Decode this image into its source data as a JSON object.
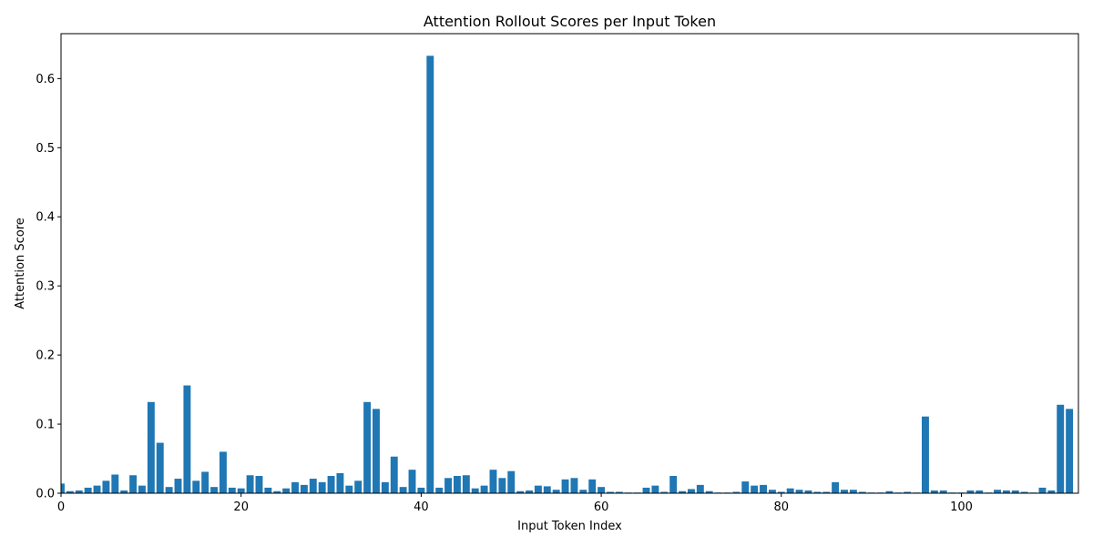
{
  "chart_data": {
    "type": "bar",
    "title": "Attention Rollout Scores per Input Token",
    "xlabel": "Input Token Index",
    "ylabel": "Attention Score",
    "xlim": [
      0,
      113
    ],
    "ylim": [
      0,
      0.665
    ],
    "xticks": [
      0,
      20,
      40,
      60,
      80,
      100
    ],
    "xtick_labels": [
      "0",
      "20",
      "40",
      "60",
      "80",
      "100"
    ],
    "yticks": [
      0.0,
      0.1,
      0.2,
      0.3,
      0.4,
      0.5,
      0.6
    ],
    "ytick_labels": [
      "0.0",
      "0.1",
      "0.2",
      "0.3",
      "0.4",
      "0.5",
      "0.6"
    ],
    "grid": false,
    "bar_color": "#1f77b4",
    "x": [
      0,
      1,
      2,
      3,
      4,
      5,
      6,
      7,
      8,
      9,
      10,
      11,
      12,
      13,
      14,
      15,
      16,
      17,
      18,
      19,
      20,
      21,
      22,
      23,
      24,
      25,
      26,
      27,
      28,
      29,
      30,
      31,
      32,
      33,
      34,
      35,
      36,
      37,
      38,
      39,
      40,
      41,
      42,
      43,
      44,
      45,
      46,
      47,
      48,
      49,
      50,
      51,
      52,
      53,
      54,
      55,
      56,
      57,
      58,
      59,
      60,
      61,
      62,
      63,
      64,
      65,
      66,
      67,
      68,
      69,
      70,
      71,
      72,
      73,
      74,
      75,
      76,
      77,
      78,
      79,
      80,
      81,
      82,
      83,
      84,
      85,
      86,
      87,
      88,
      89,
      90,
      91,
      92,
      93,
      94,
      95,
      96,
      97,
      98,
      99,
      100,
      101,
      102,
      103,
      104,
      105,
      106,
      107,
      108,
      109,
      110,
      111,
      112
    ],
    "values": [
      0.014,
      0.003,
      0.004,
      0.008,
      0.011,
      0.018,
      0.027,
      0.004,
      0.026,
      0.011,
      0.132,
      0.073,
      0.009,
      0.021,
      0.156,
      0.018,
      0.031,
      0.009,
      0.06,
      0.008,
      0.007,
      0.026,
      0.025,
      0.008,
      0.003,
      0.007,
      0.016,
      0.012,
      0.021,
      0.016,
      0.025,
      0.029,
      0.011,
      0.018,
      0.132,
      0.122,
      0.016,
      0.053,
      0.009,
      0.034,
      0.008,
      0.633,
      0.008,
      0.022,
      0.025,
      0.026,
      0.007,
      0.011,
      0.034,
      0.022,
      0.032,
      0.003,
      0.004,
      0.011,
      0.01,
      0.005,
      0.02,
      0.022,
      0.005,
      0.02,
      0.009,
      0.002,
      0.002,
      0.001,
      0.001,
      0.008,
      0.011,
      0.002,
      0.025,
      0.003,
      0.006,
      0.012,
      0.003,
      0.001,
      0.001,
      0.002,
      0.017,
      0.011,
      0.012,
      0.005,
      0.002,
      0.007,
      0.005,
      0.004,
      0.002,
      0.002,
      0.016,
      0.005,
      0.005,
      0.002,
      0.001,
      0.001,
      0.003,
      0.001,
      0.002,
      0.001,
      0.111,
      0.004,
      0.004,
      0.001,
      0.001,
      0.004,
      0.004,
      0.001,
      0.005,
      0.004,
      0.004,
      0.002,
      0.001,
      0.008,
      0.004,
      0.128,
      0.122
    ]
  }
}
